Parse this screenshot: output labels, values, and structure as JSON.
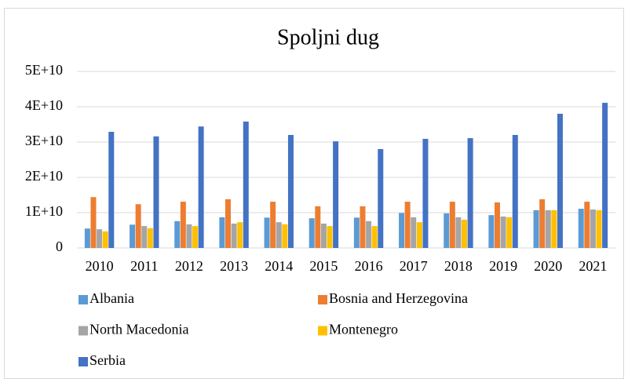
{
  "chart_data": {
    "type": "bar",
    "title": "Spoljni dug",
    "categories": [
      "2010",
      "2011",
      "2012",
      "2013",
      "2014",
      "2015",
      "2016",
      "2017",
      "2018",
      "2019",
      "2020",
      "2021"
    ],
    "series": [
      {
        "name": "Albania",
        "color": "#5b9bd5",
        "values": [
          5500000000,
          6600000000,
          7600000000,
          8700000000,
          8600000000,
          8400000000,
          8600000000,
          9900000000,
          9800000000,
          9300000000,
          10700000000,
          11100000000
        ]
      },
      {
        "name": "Bosnia and Herzegovina",
        "color": "#ed7d31",
        "values": [
          14400000000,
          12400000000,
          13100000000,
          13800000000,
          13100000000,
          11800000000,
          11800000000,
          13100000000,
          13100000000,
          12900000000,
          13800000000,
          13100000000
        ]
      },
      {
        "name": "North Macedonia",
        "color": "#a5a5a5",
        "values": [
          5300000000,
          6200000000,
          6700000000,
          6900000000,
          7300000000,
          6900000000,
          7600000000,
          8700000000,
          8700000000,
          8900000000,
          10700000000,
          10900000000
        ]
      },
      {
        "name": "Montenegro",
        "color": "#ffc000",
        "values": [
          4700000000,
          5600000000,
          6200000000,
          7300000000,
          6700000000,
          6200000000,
          6200000000,
          7300000000,
          8000000000,
          8700000000,
          10700000000,
          10700000000
        ]
      },
      {
        "name": "Serbia",
        "color": "#4472c4",
        "values": [
          32900000000,
          31600000000,
          34400000000,
          35800000000,
          32000000000,
          30200000000,
          28000000000,
          30900000000,
          31100000000,
          32000000000,
          38000000000,
          41100000000
        ]
      }
    ],
    "ylim": [
      0,
      50000000000
    ],
    "yticks": [
      0,
      {
        "value": 10000000000,
        "label": "1E+10"
      },
      {
        "value": 20000000000,
        "label": "2E+10"
      },
      {
        "value": 30000000000,
        "label": "3E+10"
      },
      {
        "value": 40000000000,
        "label": "4E+10"
      },
      {
        "value": 50000000000,
        "label": "5E+10"
      }
    ],
    "grid": true,
    "legend": "bottom"
  }
}
